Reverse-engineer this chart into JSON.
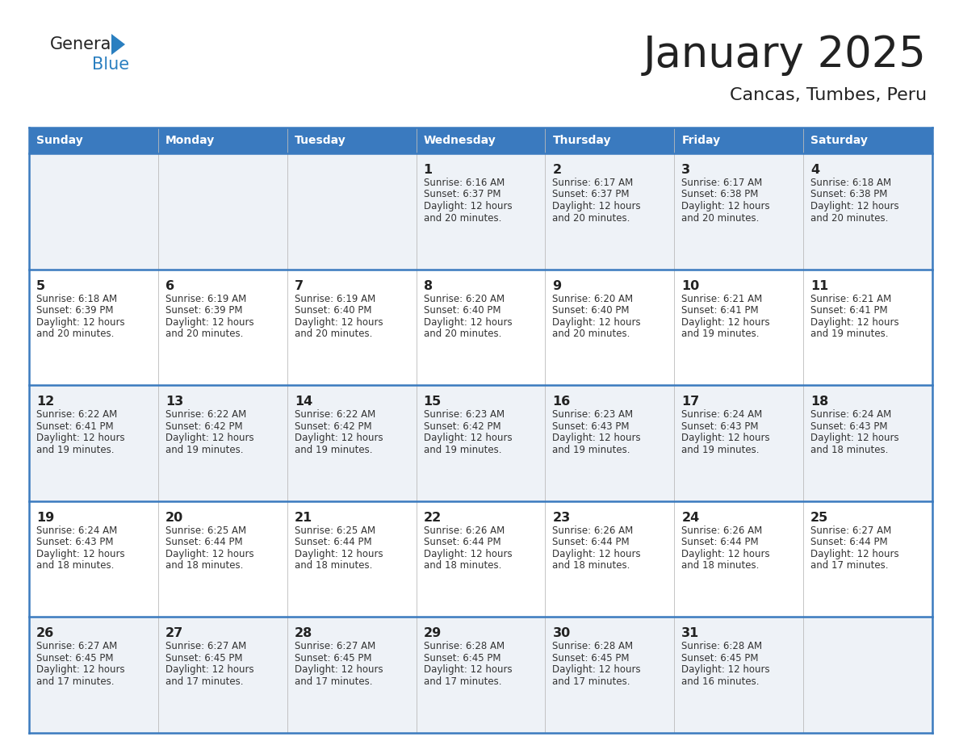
{
  "title": "January 2025",
  "subtitle": "Cancas, Tumbes, Peru",
  "days_of_week": [
    "Sunday",
    "Monday",
    "Tuesday",
    "Wednesday",
    "Thursday",
    "Friday",
    "Saturday"
  ],
  "header_bg": "#3a7abf",
  "header_text": "#ffffff",
  "row_bg_odd": "#eef2f7",
  "row_bg_even": "#ffffff",
  "border_color": "#3a7abf",
  "day_num_color": "#222222",
  "text_color": "#333333",
  "calendar": [
    [
      null,
      null,
      null,
      {
        "day": 1,
        "sunrise": "6:16 AM",
        "sunset": "6:37 PM",
        "daylight": "12 hours\nand 20 minutes."
      },
      {
        "day": 2,
        "sunrise": "6:17 AM",
        "sunset": "6:37 PM",
        "daylight": "12 hours\nand 20 minutes."
      },
      {
        "day": 3,
        "sunrise": "6:17 AM",
        "sunset": "6:38 PM",
        "daylight": "12 hours\nand 20 minutes."
      },
      {
        "day": 4,
        "sunrise": "6:18 AM",
        "sunset": "6:38 PM",
        "daylight": "12 hours\nand 20 minutes."
      }
    ],
    [
      {
        "day": 5,
        "sunrise": "6:18 AM",
        "sunset": "6:39 PM",
        "daylight": "12 hours\nand 20 minutes."
      },
      {
        "day": 6,
        "sunrise": "6:19 AM",
        "sunset": "6:39 PM",
        "daylight": "12 hours\nand 20 minutes."
      },
      {
        "day": 7,
        "sunrise": "6:19 AM",
        "sunset": "6:40 PM",
        "daylight": "12 hours\nand 20 minutes."
      },
      {
        "day": 8,
        "sunrise": "6:20 AM",
        "sunset": "6:40 PM",
        "daylight": "12 hours\nand 20 minutes."
      },
      {
        "day": 9,
        "sunrise": "6:20 AM",
        "sunset": "6:40 PM",
        "daylight": "12 hours\nand 20 minutes."
      },
      {
        "day": 10,
        "sunrise": "6:21 AM",
        "sunset": "6:41 PM",
        "daylight": "12 hours\nand 19 minutes."
      },
      {
        "day": 11,
        "sunrise": "6:21 AM",
        "sunset": "6:41 PM",
        "daylight": "12 hours\nand 19 minutes."
      }
    ],
    [
      {
        "day": 12,
        "sunrise": "6:22 AM",
        "sunset": "6:41 PM",
        "daylight": "12 hours\nand 19 minutes."
      },
      {
        "day": 13,
        "sunrise": "6:22 AM",
        "sunset": "6:42 PM",
        "daylight": "12 hours\nand 19 minutes."
      },
      {
        "day": 14,
        "sunrise": "6:22 AM",
        "sunset": "6:42 PM",
        "daylight": "12 hours\nand 19 minutes."
      },
      {
        "day": 15,
        "sunrise": "6:23 AM",
        "sunset": "6:42 PM",
        "daylight": "12 hours\nand 19 minutes."
      },
      {
        "day": 16,
        "sunrise": "6:23 AM",
        "sunset": "6:43 PM",
        "daylight": "12 hours\nand 19 minutes."
      },
      {
        "day": 17,
        "sunrise": "6:24 AM",
        "sunset": "6:43 PM",
        "daylight": "12 hours\nand 19 minutes."
      },
      {
        "day": 18,
        "sunrise": "6:24 AM",
        "sunset": "6:43 PM",
        "daylight": "12 hours\nand 18 minutes."
      }
    ],
    [
      {
        "day": 19,
        "sunrise": "6:24 AM",
        "sunset": "6:43 PM",
        "daylight": "12 hours\nand 18 minutes."
      },
      {
        "day": 20,
        "sunrise": "6:25 AM",
        "sunset": "6:44 PM",
        "daylight": "12 hours\nand 18 minutes."
      },
      {
        "day": 21,
        "sunrise": "6:25 AM",
        "sunset": "6:44 PM",
        "daylight": "12 hours\nand 18 minutes."
      },
      {
        "day": 22,
        "sunrise": "6:26 AM",
        "sunset": "6:44 PM",
        "daylight": "12 hours\nand 18 minutes."
      },
      {
        "day": 23,
        "sunrise": "6:26 AM",
        "sunset": "6:44 PM",
        "daylight": "12 hours\nand 18 minutes."
      },
      {
        "day": 24,
        "sunrise": "6:26 AM",
        "sunset": "6:44 PM",
        "daylight": "12 hours\nand 18 minutes."
      },
      {
        "day": 25,
        "sunrise": "6:27 AM",
        "sunset": "6:44 PM",
        "daylight": "12 hours\nand 17 minutes."
      }
    ],
    [
      {
        "day": 26,
        "sunrise": "6:27 AM",
        "sunset": "6:45 PM",
        "daylight": "12 hours\nand 17 minutes."
      },
      {
        "day": 27,
        "sunrise": "6:27 AM",
        "sunset": "6:45 PM",
        "daylight": "12 hours\nand 17 minutes."
      },
      {
        "day": 28,
        "sunrise": "6:27 AM",
        "sunset": "6:45 PM",
        "daylight": "12 hours\nand 17 minutes."
      },
      {
        "day": 29,
        "sunrise": "6:28 AM",
        "sunset": "6:45 PM",
        "daylight": "12 hours\nand 17 minutes."
      },
      {
        "day": 30,
        "sunrise": "6:28 AM",
        "sunset": "6:45 PM",
        "daylight": "12 hours\nand 17 minutes."
      },
      {
        "day": 31,
        "sunrise": "6:28 AM",
        "sunset": "6:45 PM",
        "daylight": "12 hours\nand 16 minutes."
      },
      null
    ]
  ],
  "logo_general_color": "#222222",
  "logo_blue_color": "#2a7fc0"
}
